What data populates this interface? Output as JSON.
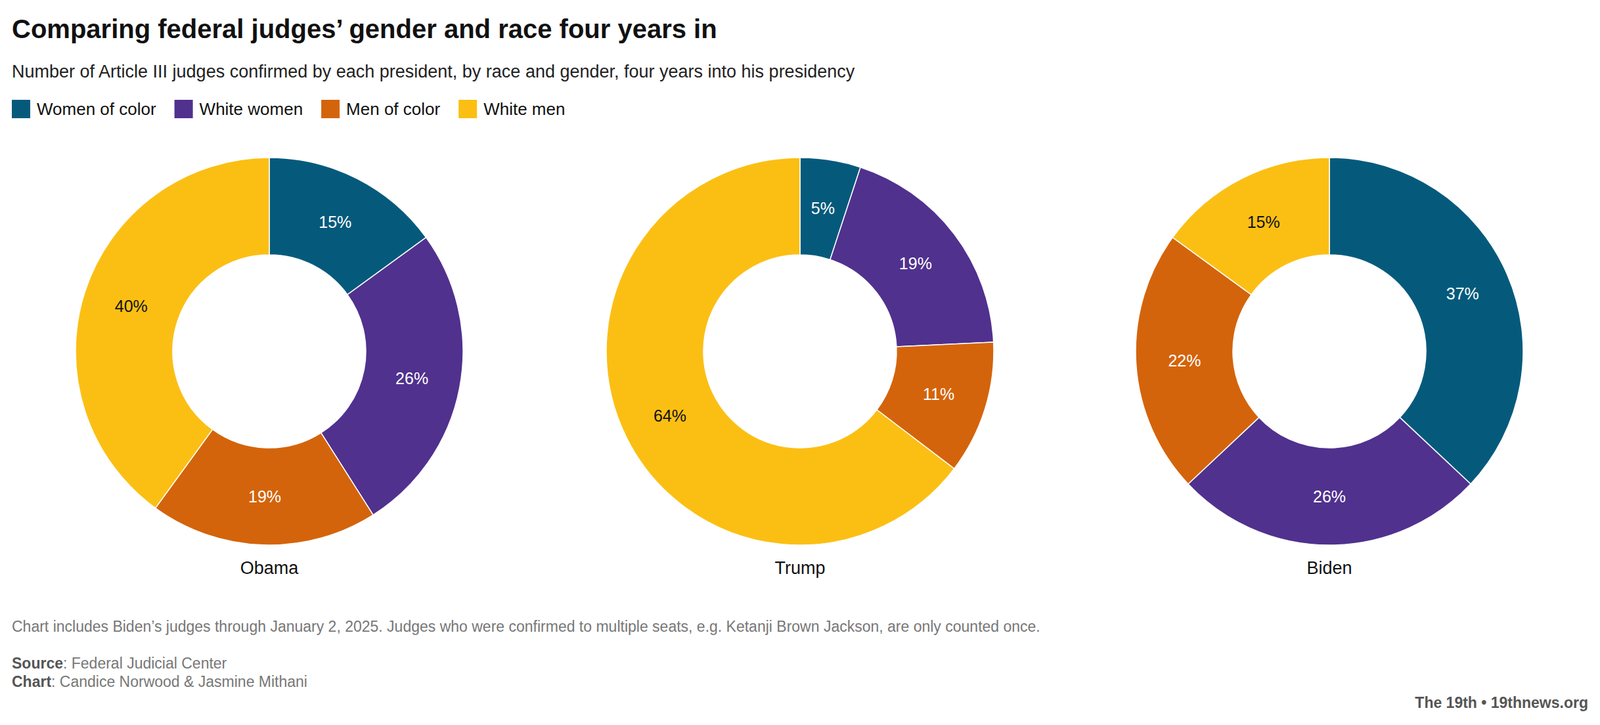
{
  "header": {
    "title": "Comparing federal judges’ gender and race four years in",
    "subtitle": "Number of Article III judges confirmed by each president, by race and gender, four years into his presidency"
  },
  "chart_data": [
    {
      "type": "pie",
      "title": "Obama",
      "categories": [
        "Women of color",
        "White women",
        "Men of color",
        "White men"
      ],
      "values": [
        15,
        26,
        19,
        40
      ],
      "value_labels": [
        "15%",
        "26%",
        "19%",
        "40%"
      ],
      "colors": [
        "#055a7c",
        "#50318e",
        "#d4640b",
        "#fbbf14"
      ],
      "data_labels": true,
      "legend": "top-left"
    },
    {
      "type": "pie",
      "title": "Trump",
      "categories": [
        "Women of color",
        "White women",
        "Men of color",
        "White men"
      ],
      "values": [
        5,
        19,
        11,
        64
      ],
      "value_labels": [
        "5%",
        "19%",
        "11%",
        "64%"
      ],
      "colors": [
        "#055a7c",
        "#50318e",
        "#d4640b",
        "#fbbf14"
      ],
      "data_labels": true
    },
    {
      "type": "pie",
      "title": "Biden",
      "categories": [
        "Women of color",
        "White women",
        "Men of color",
        "White men"
      ],
      "values": [
        37,
        26,
        22,
        15
      ],
      "value_labels": [
        "37%",
        "26%",
        "22%",
        "15%"
      ],
      "colors": [
        "#055a7c",
        "#50318e",
        "#d4640b",
        "#fbbf14"
      ],
      "data_labels": true
    }
  ],
  "footer": {
    "note": "Chart includes Biden’s judges through January 2, 2025. Judges who were confirmed to multiple seats, e.g. Ketanji Brown Jackson, are only counted once.",
    "source": {
      "label": "Source",
      "text": ": Federal Judicial Center"
    },
    "credit": {
      "label": "Chart",
      "text": ": Candice Norwood & Jasmine Mithani"
    },
    "brand": "The 19th • 19thnews.org"
  }
}
